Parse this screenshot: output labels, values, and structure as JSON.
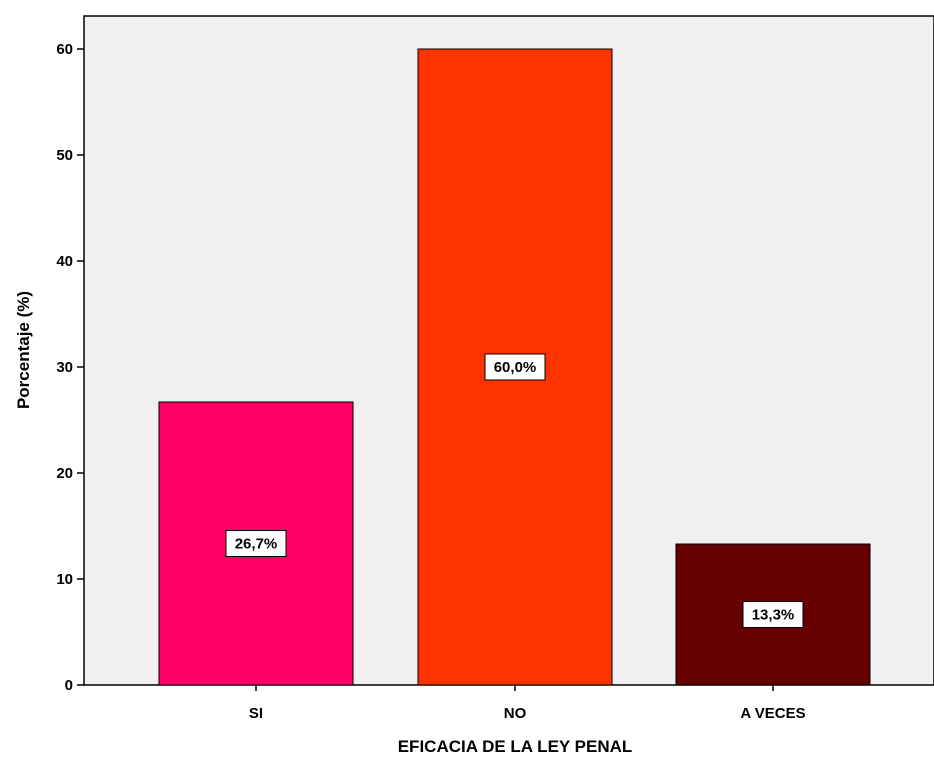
{
  "chart_data": {
    "type": "bar",
    "categories": [
      "SI",
      "NO",
      "A VECES"
    ],
    "values": [
      26.7,
      60.0,
      13.3
    ],
    "value_labels": [
      "26,7%",
      "60,0%",
      "13,3%"
    ],
    "bar_colors": [
      "#ff0066",
      "#ff3300",
      "#660000"
    ],
    "xlabel": "EFICACIA DE LA LEY PENAL",
    "ylabel": "Porcentaje (%)",
    "ylim": [
      0,
      64
    ],
    "yticks": [
      0,
      10,
      20,
      30,
      40,
      50,
      60
    ],
    "grid": false,
    "legend": "none",
    "plot_background": "#f0f0f0"
  }
}
